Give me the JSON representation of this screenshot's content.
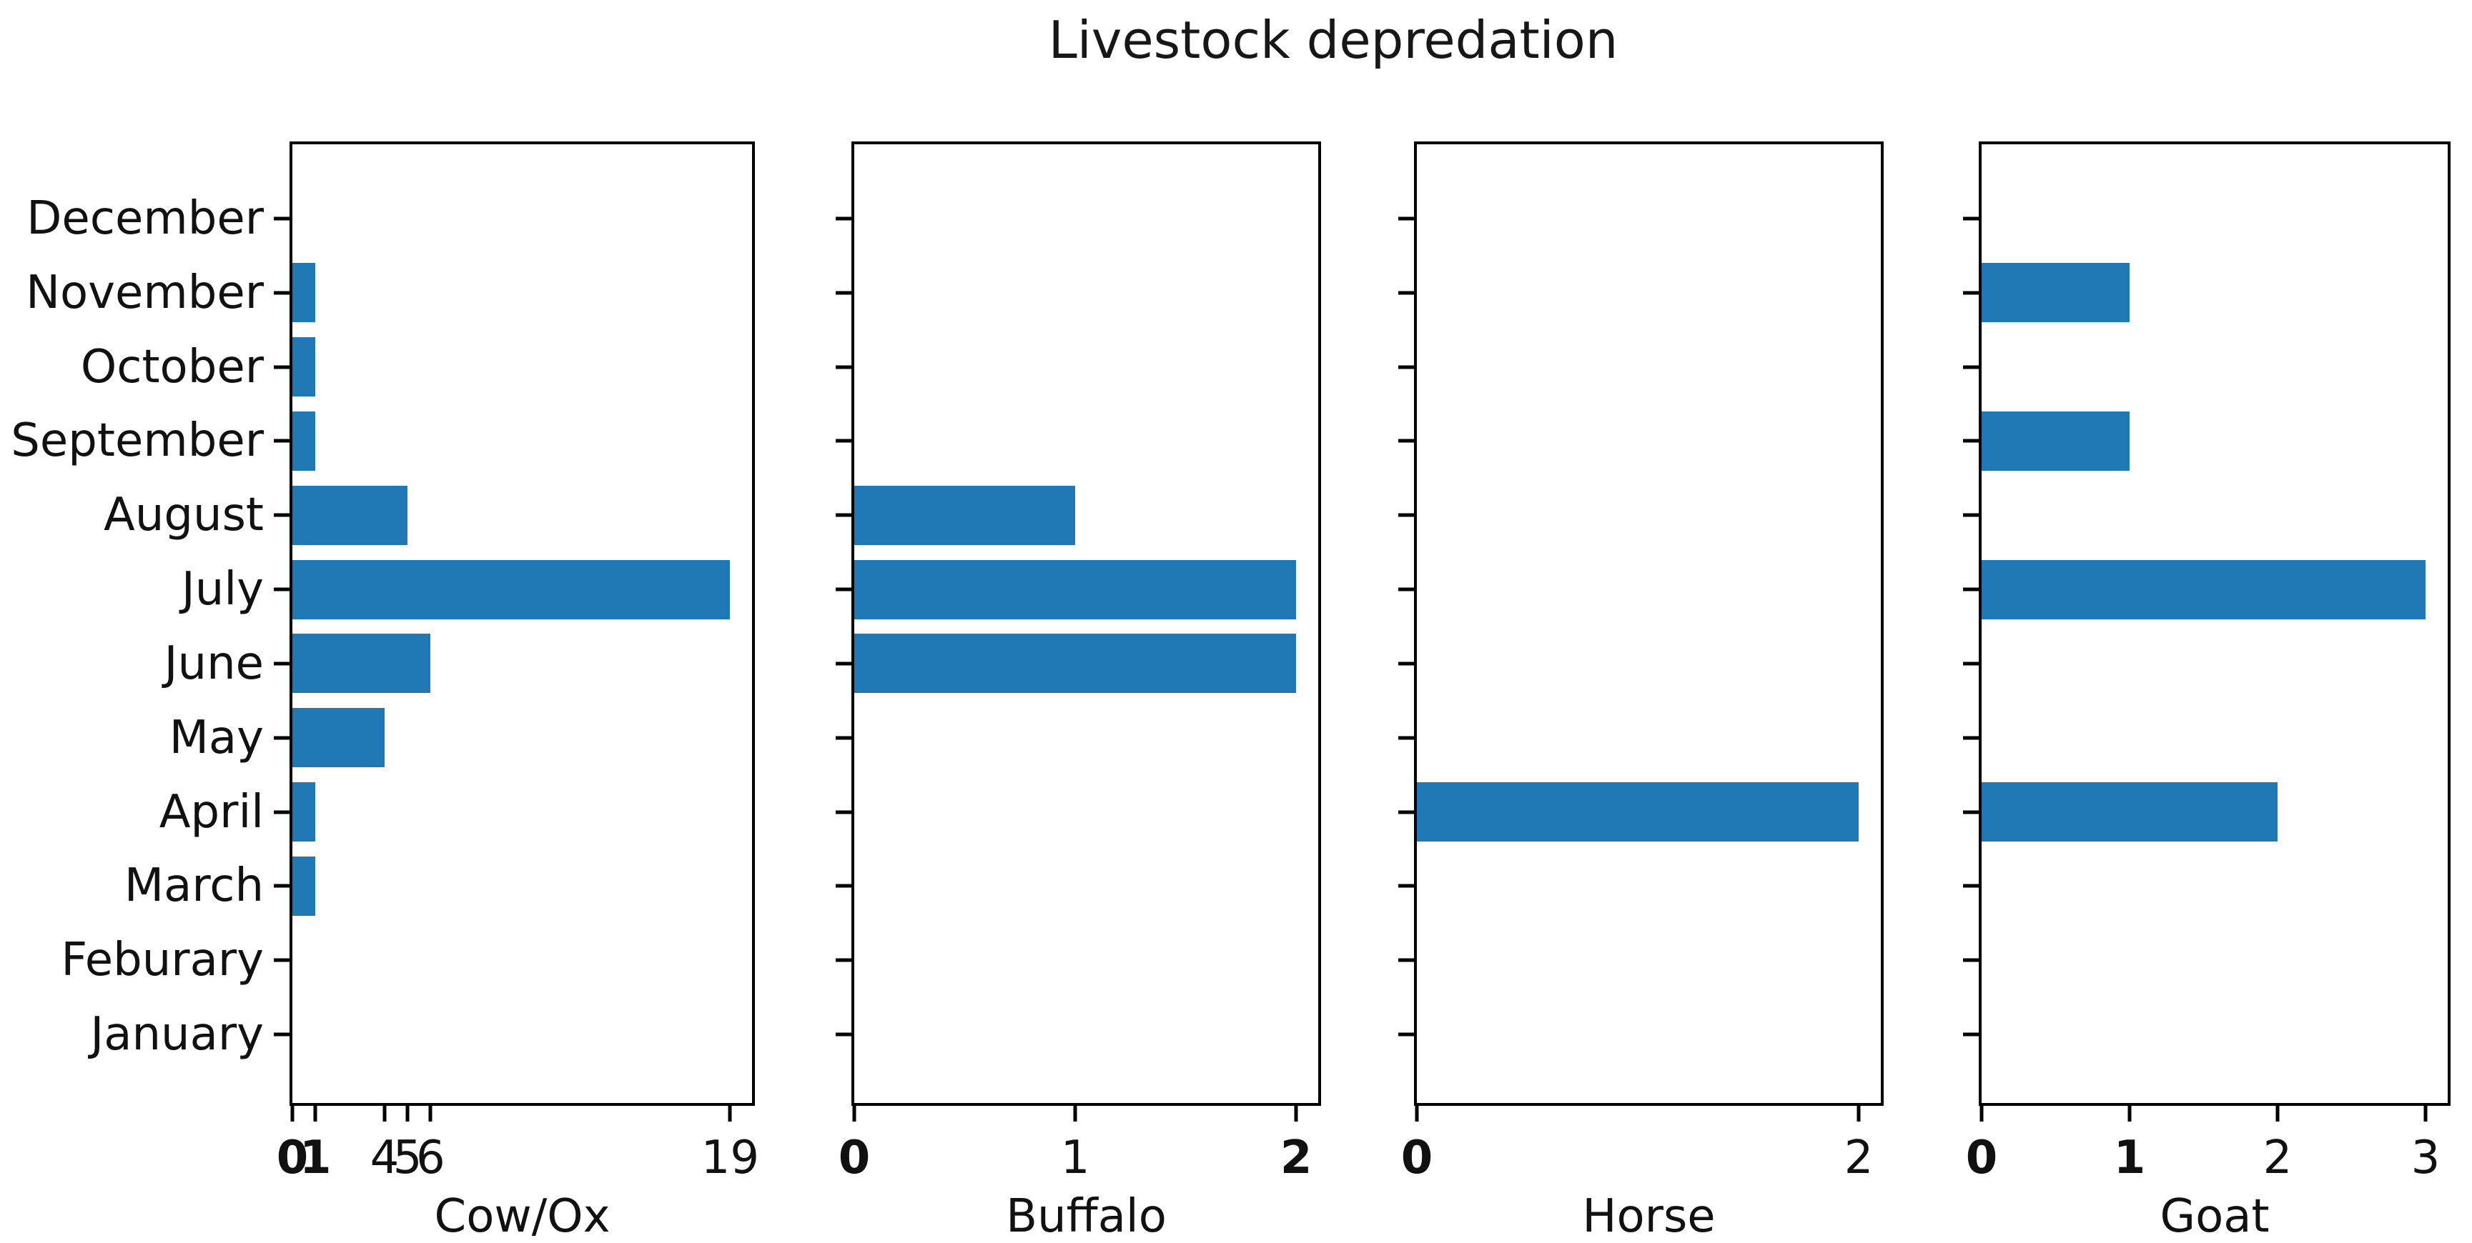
{
  "figure": {
    "title": "Livestock depredation",
    "background": "#ffffff"
  },
  "chart_data": {
    "type": "bar",
    "orientation": "horizontal",
    "suptitle": "Livestock depredation",
    "grid": false,
    "legend": "none",
    "bar_color": "#1f77b4",
    "months_top_to_bottom": [
      "December",
      "November",
      "October",
      "September",
      "August",
      "July",
      "June",
      "May",
      "April",
      "March",
      "Feburary",
      "January"
    ],
    "subplots": [
      {
        "xlabel": "Cow/Ox",
        "values": [
          0,
          1,
          1,
          1,
          5,
          19,
          6,
          4,
          1,
          1,
          0,
          0
        ],
        "xticks": [
          0,
          1,
          4,
          5,
          6,
          19
        ],
        "xticks_bold": [
          true,
          true,
          false,
          false,
          false,
          false
        ],
        "xlim": [
          0,
          19.95
        ]
      },
      {
        "xlabel": "Buffalo",
        "values": [
          0,
          0,
          0,
          0,
          1,
          2,
          2,
          0,
          0,
          0,
          0,
          0
        ],
        "xticks": [
          0,
          1,
          2
        ],
        "xticks_bold": [
          true,
          false,
          true
        ],
        "xlim": [
          0,
          2.1
        ]
      },
      {
        "xlabel": "Horse",
        "values": [
          0,
          0,
          0,
          0,
          0,
          0,
          0,
          0,
          2,
          0,
          0,
          0
        ],
        "xticks": [
          0,
          2
        ],
        "xticks_bold": [
          true,
          false
        ],
        "xlim": [
          0,
          2.1
        ]
      },
      {
        "xlabel": "Goat",
        "values": [
          0,
          1,
          0,
          1,
          0,
          3,
          0,
          0,
          2,
          0,
          0,
          0
        ],
        "xticks": [
          0,
          1,
          2,
          3
        ],
        "xticks_bold": [
          true,
          true,
          false,
          false
        ],
        "xlim": [
          0,
          3.15
        ]
      }
    ]
  }
}
